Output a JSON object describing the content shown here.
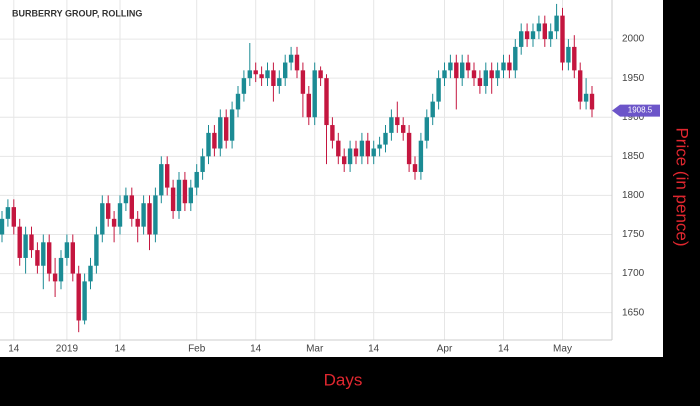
{
  "chart_data": {
    "type": "candlestick",
    "title": "BURBERRY GROUP, ROLLING",
    "x_label": "Days",
    "y_label": "Price (in pence)",
    "categories": [
      null,
      null,
      "14",
      null,
      null,
      null,
      null,
      null,
      null,
      null,
      null,
      "2019",
      null,
      null,
      null,
      null,
      null,
      null,
      null,
      null,
      "14",
      null,
      null,
      null,
      null,
      null,
      null,
      null,
      null,
      null,
      null,
      null,
      null,
      "Feb",
      null,
      null,
      null,
      null,
      null,
      null,
      null,
      null,
      null,
      "14",
      null,
      null,
      null,
      null,
      null,
      null,
      null,
      null,
      null,
      "Mar",
      null,
      null,
      null,
      null,
      null,
      null,
      null,
      null,
      null,
      "14",
      null,
      null,
      null,
      null,
      null,
      null,
      null,
      null,
      null,
      null,
      null,
      "Apr",
      null,
      null,
      null,
      null,
      null,
      null,
      null,
      null,
      null,
      "14",
      null,
      null,
      null,
      null,
      null,
      null,
      null,
      null,
      null,
      "May",
      null,
      null,
      null,
      null,
      null
    ],
    "open": [
      1750,
      1770,
      1785,
      1760,
      1720,
      1750,
      1730,
      1710,
      1740,
      1700,
      1690,
      1720,
      1740,
      1700,
      1640,
      1690,
      1710,
      1750,
      1790,
      1770,
      1760,
      1790,
      1800,
      1770,
      1760,
      1790,
      1750,
      1800,
      1840,
      1810,
      1780,
      1820,
      1790,
      1810,
      1830,
      1850,
      1880,
      1860,
      1900,
      1870,
      1910,
      1930,
      1950,
      1960,
      1955,
      1950,
      1960,
      1940,
      1950,
      1970,
      1980,
      1960,
      1930,
      1900,
      1960,
      1950,
      1890,
      1870,
      1850,
      1840,
      1860,
      1850,
      1870,
      1850,
      1860,
      1865,
      1880,
      1900,
      1890,
      1880,
      1840,
      1830,
      1870,
      1900,
      1920,
      1950,
      1960,
      1970,
      1950,
      1970,
      1960,
      1950,
      1940,
      1960,
      1950,
      1960,
      1970,
      1960,
      1990,
      2010,
      2000,
      2010,
      2020,
      2000,
      2010,
      2030,
      1970,
      1990,
      1960,
      1920,
      1930
    ],
    "high": [
      1780,
      1795,
      1795,
      1770,
      1760,
      1760,
      1740,
      1750,
      1750,
      1720,
      1730,
      1750,
      1750,
      1710,
      1700,
      1720,
      1760,
      1800,
      1800,
      1780,
      1800,
      1810,
      1810,
      1780,
      1800,
      1800,
      1810,
      1850,
      1850,
      1820,
      1830,
      1830,
      1820,
      1840,
      1860,
      1890,
      1890,
      1910,
      1910,
      1920,
      1940,
      1960,
      1995,
      1970,
      1965,
      1970,
      1970,
      1960,
      1980,
      1990,
      1990,
      1970,
      1940,
      1970,
      1965,
      1955,
      1900,
      1880,
      1860,
      1870,
      1870,
      1880,
      1880,
      1870,
      1875,
      1890,
      1910,
      1920,
      1900,
      1890,
      1850,
      1880,
      1910,
      1930,
      1960,
      1970,
      1980,
      1980,
      1980,
      1980,
      1970,
      1960,
      1970,
      1970,
      1970,
      1980,
      1980,
      2000,
      2020,
      2020,
      2020,
      2030,
      2030,
      2020,
      2045,
      2040,
      2000,
      2005,
      1970,
      1950,
      1940
    ],
    "low": [
      1740,
      1760,
      1750,
      1710,
      1700,
      1720,
      1700,
      1680,
      1690,
      1670,
      1680,
      1710,
      1690,
      1625,
      1635,
      1680,
      1700,
      1740,
      1760,
      1740,
      1750,
      1780,
      1760,
      1740,
      1750,
      1730,
      1740,
      1790,
      1800,
      1770,
      1770,
      1780,
      1780,
      1800,
      1820,
      1840,
      1850,
      1850,
      1860,
      1860,
      1900,
      1920,
      1940,
      1945,
      1940,
      1940,
      1920,
      1930,
      1940,
      1960,
      1950,
      1900,
      1890,
      1890,
      1940,
      1840,
      1860,
      1840,
      1830,
      1830,
      1840,
      1840,
      1840,
      1840,
      1850,
      1855,
      1870,
      1880,
      1870,
      1830,
      1820,
      1820,
      1860,
      1890,
      1910,
      1940,
      1950,
      1910,
      1940,
      1950,
      1940,
      1930,
      1930,
      1930,
      1940,
      1950,
      1950,
      1950,
      1980,
      1990,
      1990,
      2000,
      1990,
      1990,
      2000,
      1960,
      1960,
      1950,
      1910,
      1910,
      1900
    ],
    "close": [
      1770,
      1785,
      1760,
      1720,
      1750,
      1730,
      1710,
      1740,
      1700,
      1690,
      1720,
      1740,
      1700,
      1640,
      1690,
      1710,
      1750,
      1790,
      1770,
      1760,
      1790,
      1800,
      1770,
      1760,
      1790,
      1750,
      1800,
      1840,
      1810,
      1780,
      1820,
      1790,
      1810,
      1830,
      1850,
      1880,
      1860,
      1900,
      1870,
      1910,
      1930,
      1950,
      1960,
      1955,
      1950,
      1960,
      1940,
      1950,
      1970,
      1980,
      1960,
      1930,
      1900,
      1960,
      1950,
      1890,
      1870,
      1850,
      1840,
      1860,
      1850,
      1870,
      1850,
      1860,
      1865,
      1880,
      1900,
      1890,
      1880,
      1840,
      1830,
      1870,
      1900,
      1920,
      1950,
      1960,
      1970,
      1950,
      1970,
      1960,
      1950,
      1940,
      1960,
      1950,
      1960,
      1970,
      1960,
      1990,
      2010,
      2000,
      2010,
      2020,
      2000,
      2010,
      2030,
      1970,
      1990,
      1960,
      1920,
      1930,
      1910
    ],
    "last_price": 1908.5,
    "up_color": "#1b8b94",
    "down_color": "#c4163f",
    "ylim": [
      1615,
      2050
    ],
    "yticks": [
      1650,
      1700,
      1750,
      1800,
      1850,
      1900,
      1950,
      2000
    ],
    "grid": true
  }
}
